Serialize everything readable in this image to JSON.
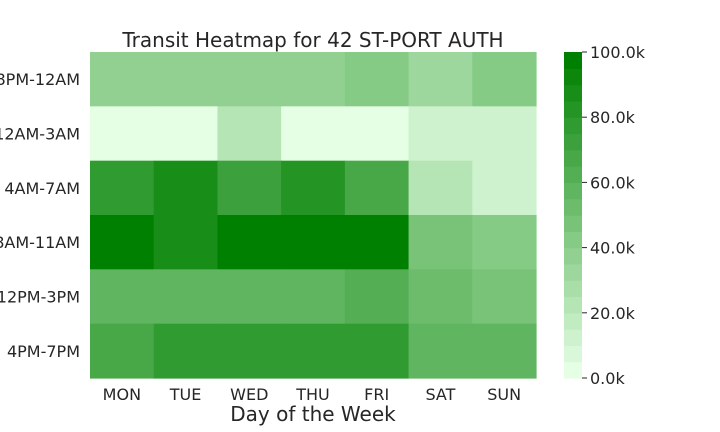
{
  "chart_data": {
    "type": "heatmap",
    "title": "Transit Heatmap for 42 ST-PORT AUTH",
    "xlabel": "Day of the Week",
    "ylabel": "",
    "x_categories": [
      "MON",
      "TUE",
      "WED",
      "THU",
      "FRI",
      "SAT",
      "SUN"
    ],
    "y_categories": [
      "8PM-12AM",
      "12AM-3AM",
      "4AM-7AM",
      "8AM-11AM",
      "12PM-3PM",
      "4PM-7PM"
    ],
    "values": [
      [
        35000,
        35000,
        35000,
        35000,
        42000,
        32000,
        42000
      ],
      [
        4000,
        4000,
        22000,
        4000,
        4000,
        10000,
        11000
      ],
      [
        78000,
        88000,
        72000,
        82000,
        68000,
        20000,
        12000
      ],
      [
        98000,
        88000,
        100000,
        100000,
        100000,
        47000,
        40000
      ],
      [
        57000,
        57000,
        57000,
        57000,
        63000,
        52000,
        46000
      ],
      [
        68000,
        75000,
        75000,
        75000,
        75000,
        55000,
        55000
      ]
    ],
    "colorbar": {
      "min": 0,
      "max": 100000,
      "levels": 20,
      "ticks": [
        0,
        20000,
        40000,
        60000,
        80000,
        100000
      ],
      "tick_labels": [
        "0.0k",
        "20.0k",
        "40.0k",
        "60.0k",
        "80.0k",
        "100.0k"
      ],
      "color_low": "#e5ffe5",
      "color_high": "#008000"
    },
    "grid": false
  }
}
